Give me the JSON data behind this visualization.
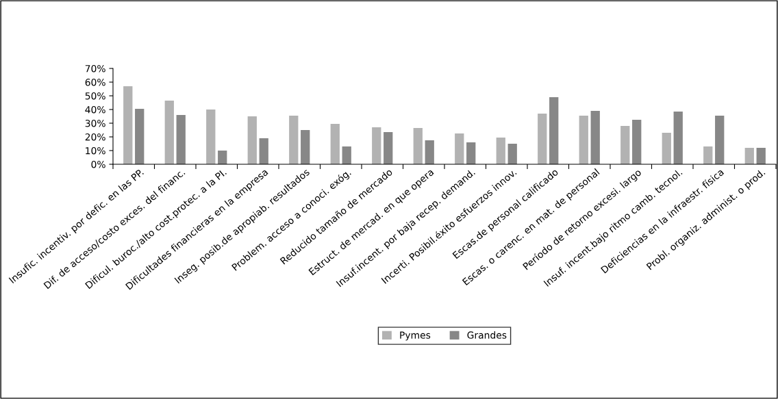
{
  "chart_data": {
    "type": "bar",
    "categories": [
      "Insufic. incentiv. por defic. en las PP.",
      "Dif. de acceso/costo exces. del financ.",
      "Dificul. buroc./alto cost.protec. a la PI.",
      "Dificultades financieras en la empresa",
      "Inseg. posib.de apropiab. resultados",
      "Problem. acceso a conoci. exóg.",
      "Reducido tamaño de mercado",
      "Estruct. de mercad. en que opera",
      "Insuf.incent. por baja recep. demand.",
      "Incerti. Posibil.éxito esfuerzos innov.",
      "Escas.de personal calificado",
      "Escas. o carenc. en mat. de personal",
      "Período de retorno excesi. largo",
      "Insuf. incent.bajo ritmo camb. tecnol.",
      "Deficiencias en la infraestr. física",
      "Probl. organiz. administ. o prod."
    ],
    "series": [
      {
        "name": "Pymes",
        "color": "#b2b2b2",
        "values": [
          57,
          46.5,
          40,
          35,
          35.5,
          29.5,
          27,
          26.5,
          22.5,
          19.5,
          37,
          35.5,
          28,
          23,
          13,
          12
        ]
      },
      {
        "name": "Grandes",
        "color": "#878787",
        "values": [
          40.5,
          36,
          10,
          19,
          25,
          13,
          23.5,
          17.5,
          16,
          15,
          49,
          39,
          32.5,
          38.5,
          35.5,
          12
        ]
      }
    ],
    "ylim": [
      0,
      70
    ],
    "yticks": [
      {
        "value": 0,
        "label": "0%"
      },
      {
        "value": 10,
        "label": "10%"
      },
      {
        "value": 20,
        "label": "20%"
      },
      {
        "value": 30,
        "label": "30%"
      },
      {
        "value": 40,
        "label": "40%"
      },
      {
        "value": 50,
        "label": "50%"
      },
      {
        "value": 60,
        "label": "60%"
      },
      {
        "value": 70,
        "label": "70%"
      }
    ],
    "grid": false,
    "legend": "bottom"
  }
}
